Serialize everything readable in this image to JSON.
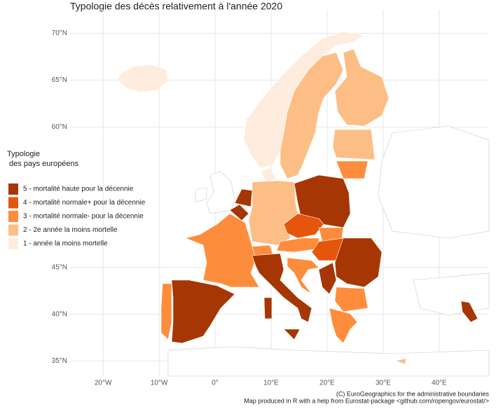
{
  "chart_data": {
    "type": "choropleth",
    "title": "Typologie des décès relativement à l'année 2020",
    "legend_title": [
      "Typologie",
      " des pays européens"
    ],
    "classes": [
      {
        "name": "5 - mortalité haute pour la décennie",
        "color": "#a63603"
      },
      {
        "name": "4 - mortalité normale+ pour la décennie",
        "color": "#e6550d"
      },
      {
        "name": "3 - mortalité normale- pour la décennie",
        "color": "#fd8d3c"
      },
      {
        "name": "2 - 2e année la moins mortelle",
        "color": "#fdbe85"
      },
      {
        "name": "1 - année la moins mortelle",
        "color": "#feedde"
      }
    ],
    "xlim": [
      -25.9,
      48.9
    ],
    "ylim": [
      33.4,
      72.5
    ],
    "xticks": [
      {
        "value": -20,
        "label": "20°W"
      },
      {
        "value": -10,
        "label": "10°W"
      },
      {
        "value": 0,
        "label": "0°"
      },
      {
        "value": 10,
        "label": "10°E"
      },
      {
        "value": 20,
        "label": "20°E"
      },
      {
        "value": 30,
        "label": "30°E"
      },
      {
        "value": 40,
        "label": "40°E"
      }
    ],
    "yticks": [
      {
        "value": 35,
        "label": "35°N"
      },
      {
        "value": 40,
        "label": "40°N"
      },
      {
        "value": 45,
        "label": "45°N"
      },
      {
        "value": 60,
        "label": "60°N"
      },
      {
        "value": 65,
        "label": "65°N"
      },
      {
        "value": 70,
        "label": "70°N"
      }
    ],
    "grid": true,
    "caption": [
      "(C) EuroGeographics for the administrative boundaries",
      "Map produced in R with a help from Eurostat-package <github.com/ropengov/eurostat/>"
    ]
  }
}
